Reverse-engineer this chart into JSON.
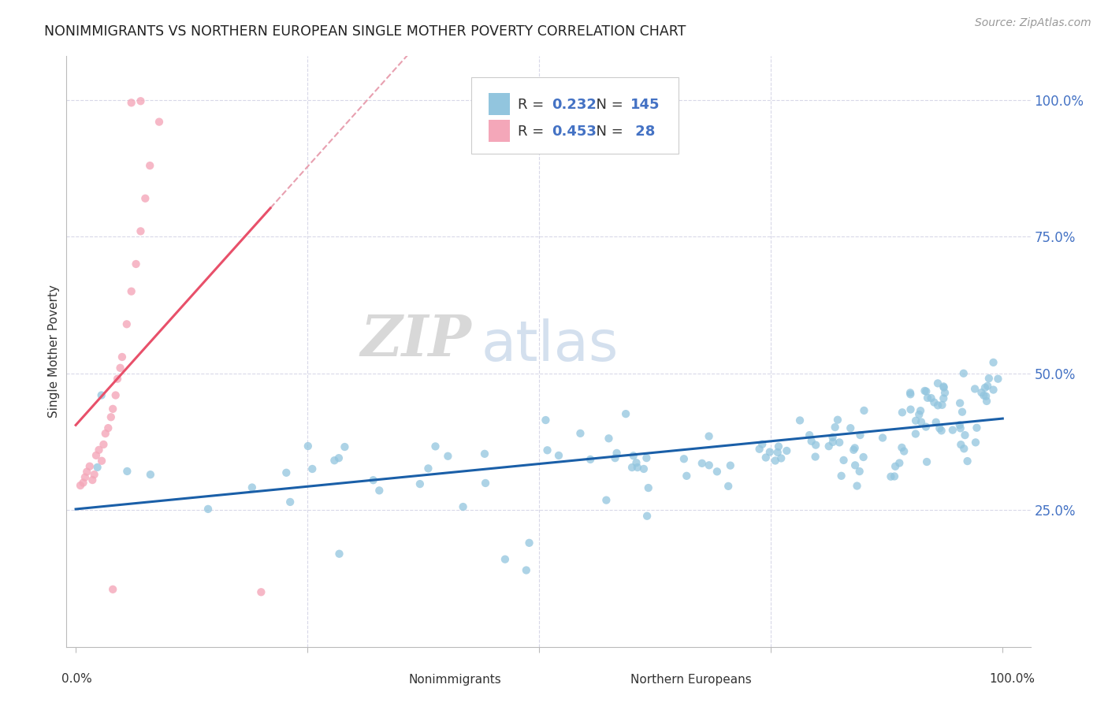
{
  "title": "NONIMMIGRANTS VS NORTHERN EUROPEAN SINGLE MOTHER POVERTY CORRELATION CHART",
  "source": "Source: ZipAtlas.com",
  "ylabel": "Single Mother Poverty",
  "legend_blue_r": "0.232",
  "legend_blue_n": "145",
  "legend_pink_r": "0.453",
  "legend_pink_n": "28",
  "legend_label_blue": "Nonimmigrants",
  "legend_label_pink": "Northern Europeans",
  "blue_color": "#92c5de",
  "pink_color": "#f4a7b9",
  "trend_blue_color": "#1a5fa8",
  "trend_pink_color": "#e8506a",
  "trend_pink_dashed_color": "#e8a0b0",
  "watermark_zip": "ZIP",
  "watermark_atlas": "atlas",
  "background_color": "#ffffff",
  "grid_color": "#d8d8e8"
}
